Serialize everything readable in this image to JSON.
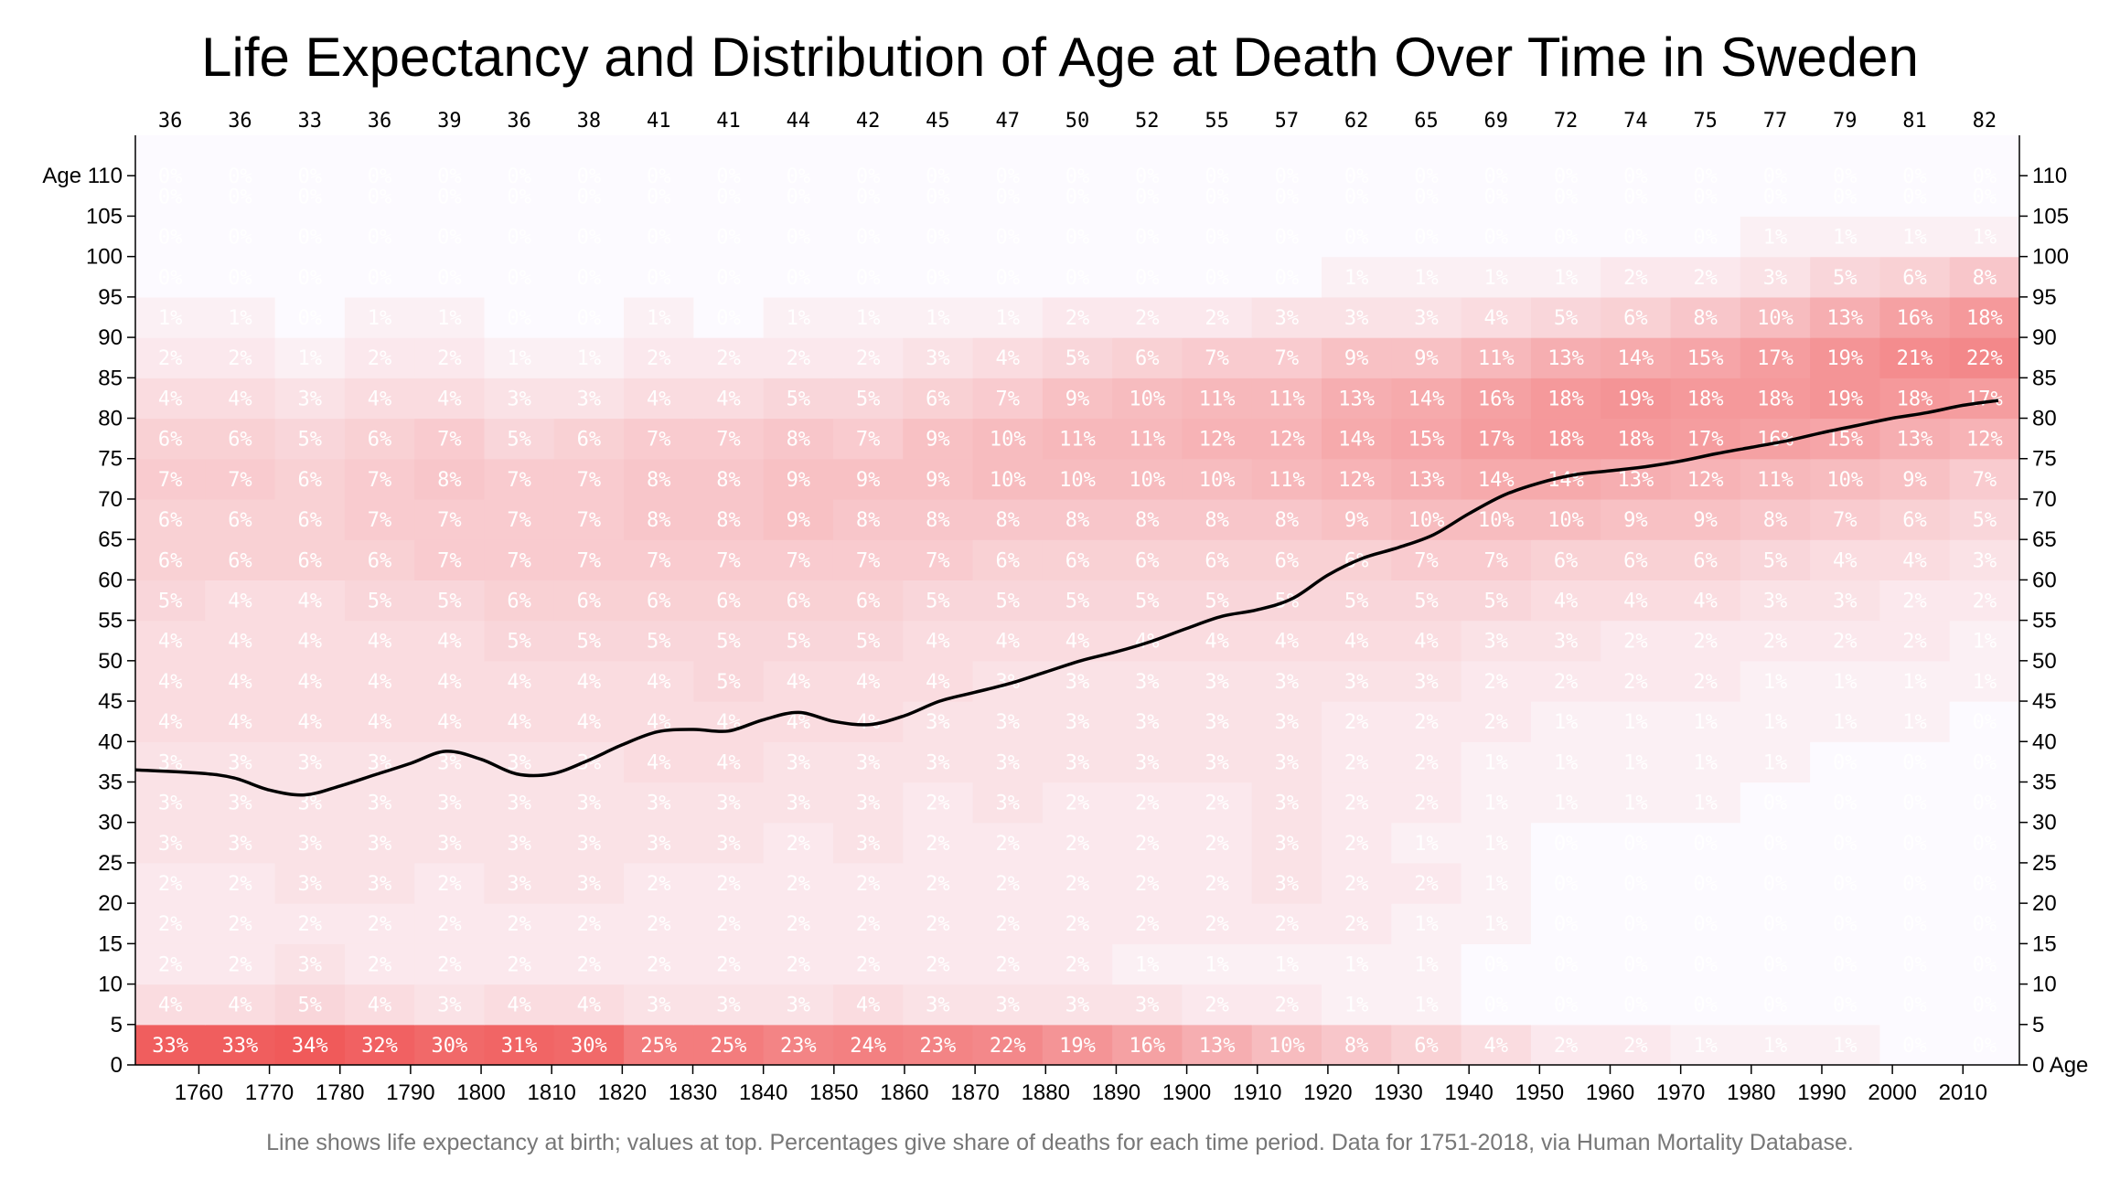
{
  "title": "Life Expectancy and Distribution of Age at Death Over Time in Sweden",
  "footnote": "Line shows life expectancy at birth; values at top. Percentages give share of deaths for each time period. Data for 1751-2018, via Human Mortality Database.",
  "colors": {
    "cell_max": "#f05a5a",
    "cell_min": "#fcfaff",
    "line": "#000000",
    "cell_text": "#ffffff"
  },
  "chart_data": {
    "type": "heatmap",
    "title": "Life Expectancy and Distribution of Age at Death Over Time in Sweden",
    "x_tick_labels": [
      "1760",
      "1770",
      "1780",
      "1790",
      "1800",
      "1810",
      "1820",
      "1830",
      "1840",
      "1850",
      "1860",
      "1870",
      "1880",
      "1890",
      "1900",
      "1910",
      "1920",
      "1930",
      "1940",
      "1950",
      "1960",
      "1970",
      "1980",
      "1990",
      "2000",
      "2010"
    ],
    "x_range": [
      1751,
      2018
    ],
    "x_columns": [
      1755,
      1765,
      1775,
      1785,
      1795,
      1805,
      1815,
      1825,
      1835,
      1845,
      1855,
      1865,
      1875,
      1885,
      1895,
      1905,
      1915,
      1925,
      1935,
      1945,
      1955,
      1965,
      1975,
      1985,
      1995,
      2005,
      2015
    ],
    "y_tick_labels": [
      "0 Age",
      "5",
      "10",
      "15",
      "20",
      "25",
      "30",
      "35",
      "40",
      "45",
      "50",
      "55",
      "60",
      "65",
      "70",
      "75",
      "80",
      "85",
      "90",
      "95",
      "100",
      "105",
      "110"
    ],
    "y_left_tick_labels": [
      "0",
      "5",
      "10",
      "15",
      "20",
      "25",
      "30",
      "35",
      "40",
      "45",
      "50",
      "55",
      "60",
      "65",
      "70",
      "75",
      "80",
      "85",
      "90",
      "95",
      "100",
      "105",
      "Age 110"
    ],
    "y_range": [
      0,
      115
    ],
    "age_bins": [
      "0-5",
      "5-10",
      "10-15",
      "15-20",
      "20-25",
      "25-30",
      "30-35",
      "35-40",
      "40-45",
      "45-50",
      "50-55",
      "55-60",
      "60-65",
      "65-70",
      "70-75",
      "75-80",
      "80-85",
      "85-90",
      "90-95",
      "95-100",
      "100-105",
      "105-110",
      "110+"
    ],
    "life_expectancy_labels": [
      "36",
      "36",
      "33",
      "36",
      "39",
      "36",
      "38",
      "41",
      "41",
      "44",
      "42",
      "45",
      "47",
      "50",
      "52",
      "55",
      "57",
      "62",
      "65",
      "69",
      "72",
      "74",
      "75",
      "77",
      "79",
      "81",
      "82"
    ],
    "life_expectancy_line": [
      [
        1751,
        36.5
      ],
      [
        1760,
        36.1
      ],
      [
        1765,
        35.5
      ],
      [
        1770,
        34.0
      ],
      [
        1775,
        33.4
      ],
      [
        1780,
        34.5
      ],
      [
        1785,
        35.9
      ],
      [
        1790,
        37.3
      ],
      [
        1795,
        38.8
      ],
      [
        1800,
        37.8
      ],
      [
        1805,
        36.0
      ],
      [
        1810,
        36.0
      ],
      [
        1815,
        37.6
      ],
      [
        1820,
        39.6
      ],
      [
        1825,
        41.2
      ],
      [
        1830,
        41.5
      ],
      [
        1835,
        41.3
      ],
      [
        1840,
        42.7
      ],
      [
        1845,
        43.6
      ],
      [
        1850,
        42.5
      ],
      [
        1855,
        42.1
      ],
      [
        1860,
        43.2
      ],
      [
        1865,
        45.0
      ],
      [
        1870,
        46.1
      ],
      [
        1875,
        47.2
      ],
      [
        1880,
        48.6
      ],
      [
        1885,
        50.0
      ],
      [
        1890,
        51.1
      ],
      [
        1895,
        52.4
      ],
      [
        1900,
        54.0
      ],
      [
        1905,
        55.5
      ],
      [
        1910,
        56.3
      ],
      [
        1915,
        57.7
      ],
      [
        1920,
        60.6
      ],
      [
        1925,
        62.7
      ],
      [
        1930,
        64.0
      ],
      [
        1935,
        65.6
      ],
      [
        1940,
        68.2
      ],
      [
        1945,
        70.5
      ],
      [
        1950,
        72.0
      ],
      [
        1955,
        73.0
      ],
      [
        1960,
        73.5
      ],
      [
        1965,
        74.0
      ],
      [
        1970,
        74.7
      ],
      [
        1975,
        75.6
      ],
      [
        1980,
        76.4
      ],
      [
        1985,
        77.2
      ],
      [
        1990,
        78.2
      ],
      [
        1995,
        79.1
      ],
      [
        2000,
        80.0
      ],
      [
        2005,
        80.7
      ],
      [
        2010,
        81.6
      ],
      [
        2015,
        82.2
      ]
    ],
    "cells": [
      [
        33,
        33,
        34,
        32,
        30,
        31,
        30,
        25,
        25,
        23,
        24,
        23,
        22,
        19,
        16,
        13,
        10,
        8,
        6,
        4,
        2,
        2,
        1,
        1,
        1,
        0,
        0
      ],
      [
        4,
        4,
        5,
        4,
        3,
        4,
        4,
        3,
        3,
        3,
        4,
        3,
        3,
        3,
        3,
        2,
        2,
        1,
        1,
        0,
        0,
        0,
        0,
        0,
        0,
        0,
        0
      ],
      [
        2,
        2,
        3,
        2,
        2,
        2,
        2,
        2,
        2,
        2,
        2,
        2,
        2,
        2,
        1,
        1,
        1,
        1,
        1,
        0,
        0,
        0,
        0,
        0,
        0,
        0,
        0
      ],
      [
        2,
        2,
        2,
        2,
        2,
        2,
        2,
        2,
        2,
        2,
        2,
        2,
        2,
        2,
        2,
        2,
        2,
        2,
        1,
        1,
        0,
        0,
        0,
        0,
        0,
        0,
        0
      ],
      [
        2,
        2,
        3,
        3,
        2,
        3,
        3,
        2,
        2,
        2,
        2,
        2,
        2,
        2,
        2,
        2,
        3,
        2,
        2,
        1,
        0,
        0,
        0,
        0,
        0,
        0,
        0
      ],
      [
        3,
        3,
        3,
        3,
        3,
        3,
        3,
        3,
        3,
        2,
        3,
        2,
        2,
        2,
        2,
        2,
        3,
        2,
        1,
        1,
        0,
        0,
        0,
        0,
        0,
        0,
        0
      ],
      [
        3,
        3,
        3,
        3,
        3,
        3,
        3,
        3,
        3,
        3,
        3,
        2,
        3,
        2,
        2,
        2,
        3,
        2,
        2,
        1,
        1,
        1,
        1,
        0,
        0,
        0,
        0
      ],
      [
        3,
        3,
        3,
        3,
        3,
        3,
        3,
        4,
        4,
        3,
        3,
        3,
        3,
        3,
        3,
        3,
        3,
        2,
        2,
        1,
        1,
        1,
        1,
        1,
        0,
        0,
        0
      ],
      [
        4,
        4,
        4,
        4,
        4,
        4,
        4,
        4,
        4,
        4,
        4,
        3,
        3,
        3,
        3,
        3,
        3,
        2,
        2,
        2,
        1,
        1,
        1,
        1,
        1,
        1,
        0
      ],
      [
        4,
        4,
        4,
        4,
        4,
        4,
        4,
        4,
        5,
        4,
        4,
        4,
        3,
        3,
        3,
        3,
        3,
        3,
        3,
        2,
        2,
        2,
        2,
        1,
        1,
        1,
        1
      ],
      [
        4,
        4,
        4,
        4,
        4,
        5,
        5,
        5,
        5,
        5,
        5,
        4,
        4,
        4,
        4,
        4,
        4,
        4,
        4,
        3,
        3,
        2,
        2,
        2,
        2,
        2,
        1
      ],
      [
        5,
        4,
        4,
        5,
        5,
        6,
        6,
        6,
        6,
        6,
        6,
        5,
        5,
        5,
        5,
        5,
        5,
        5,
        5,
        5,
        4,
        4,
        4,
        3,
        3,
        2,
        2
      ],
      [
        6,
        6,
        6,
        6,
        7,
        7,
        7,
        7,
        7,
        7,
        7,
        7,
        6,
        6,
        6,
        6,
        6,
        6,
        7,
        7,
        6,
        6,
        6,
        5,
        4,
        4,
        3
      ],
      [
        6,
        6,
        6,
        7,
        7,
        7,
        7,
        8,
        8,
        9,
        8,
        8,
        8,
        8,
        8,
        8,
        8,
        9,
        10,
        10,
        10,
        9,
        9,
        8,
        7,
        6,
        5
      ],
      [
        7,
        7,
        6,
        7,
        8,
        7,
        7,
        8,
        8,
        9,
        9,
        9,
        10,
        10,
        10,
        10,
        11,
        12,
        13,
        14,
        14,
        13,
        12,
        11,
        10,
        9,
        7
      ],
      [
        6,
        6,
        5,
        6,
        7,
        5,
        6,
        7,
        7,
        8,
        7,
        9,
        10,
        11,
        11,
        12,
        12,
        14,
        15,
        17,
        18,
        18,
        17,
        16,
        15,
        13,
        12
      ],
      [
        4,
        4,
        3,
        4,
        4,
        3,
        3,
        4,
        4,
        5,
        5,
        6,
        7,
        9,
        10,
        11,
        11,
        13,
        14,
        16,
        18,
        19,
        18,
        18,
        19,
        18,
        17
      ],
      [
        2,
        2,
        1,
        2,
        2,
        1,
        1,
        2,
        2,
        2,
        2,
        3,
        4,
        5,
        6,
        7,
        7,
        9,
        9,
        11,
        13,
        14,
        15,
        17,
        19,
        21,
        22
      ],
      [
        1,
        1,
        0,
        1,
        1,
        0,
        0,
        1,
        0,
        1,
        1,
        1,
        1,
        2,
        2,
        2,
        3,
        3,
        3,
        4,
        5,
        6,
        8,
        10,
        13,
        16,
        18
      ],
      [
        0,
        0,
        0,
        0,
        0,
        0,
        0,
        0,
        0,
        0,
        0,
        0,
        0,
        0,
        0,
        0,
        0,
        1,
        1,
        1,
        1,
        2,
        2,
        3,
        5,
        6,
        8
      ],
      [
        0,
        0,
        0,
        0,
        0,
        0,
        0,
        0,
        0,
        0,
        0,
        0,
        0,
        0,
        0,
        0,
        0,
        0,
        0,
        0,
        0,
        0,
        0,
        1,
        1,
        1,
        1
      ],
      [
        0,
        0,
        0,
        0,
        0,
        0,
        0,
        0,
        0,
        0,
        0,
        0,
        0,
        0,
        0,
        0,
        0,
        0,
        0,
        0,
        0,
        0,
        0,
        0,
        0,
        0,
        0
      ],
      [
        0,
        0,
        0,
        0,
        0,
        0,
        0,
        0,
        0,
        0,
        0,
        0,
        0,
        0,
        0,
        0,
        0,
        0,
        0,
        0,
        0,
        0,
        0,
        0,
        0,
        0,
        0
      ]
    ]
  }
}
